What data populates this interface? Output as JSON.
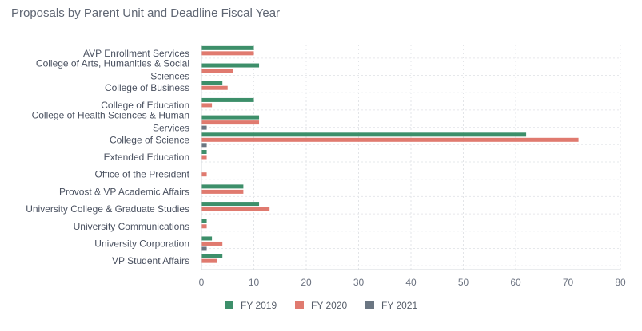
{
  "title": "Proposals by Parent Unit and Deadline Fiscal Year",
  "chart_data": {
    "type": "bar",
    "orientation": "horizontal",
    "title": "Proposals by Parent Unit and Deadline Fiscal Year",
    "categories": [
      [
        "AVP Enrollment Services"
      ],
      [
        "College of Arts, Humanities & Social",
        "Sciences"
      ],
      [
        "College of Business"
      ],
      [
        "College of Education"
      ],
      [
        "College of Health Sciences & Human",
        "Services"
      ],
      [
        "College of Science"
      ],
      [
        "Extended Education"
      ],
      [
        "Office of the President"
      ],
      [
        "Provost & VP Academic Affairs"
      ],
      [
        "University College & Graduate Studies"
      ],
      [
        "University Communications"
      ],
      [
        "University Corporation"
      ],
      [
        "VP Student Affairs"
      ]
    ],
    "series": [
      {
        "name": "FY 2019",
        "color": "#3d8f6a",
        "values": [
          10,
          11,
          4,
          10,
          11,
          62,
          1,
          0,
          8,
          11,
          1,
          2,
          4
        ]
      },
      {
        "name": "FY 2020",
        "color": "#e07a6f",
        "values": [
          10,
          6,
          5,
          2,
          11,
          72,
          1,
          1,
          8,
          13,
          1,
          4,
          3
        ]
      },
      {
        "name": "FY 2021",
        "color": "#6b7682",
        "values": [
          0,
          0,
          0,
          0,
          1,
          1,
          0,
          0,
          0,
          0,
          0,
          1,
          0
        ]
      }
    ],
    "xlim": [
      0,
      80
    ],
    "xticks": [
      "0",
      "10",
      "20",
      "30",
      "40",
      "50",
      "60",
      "70",
      "80"
    ],
    "grid": true,
    "legend": "bottom"
  }
}
